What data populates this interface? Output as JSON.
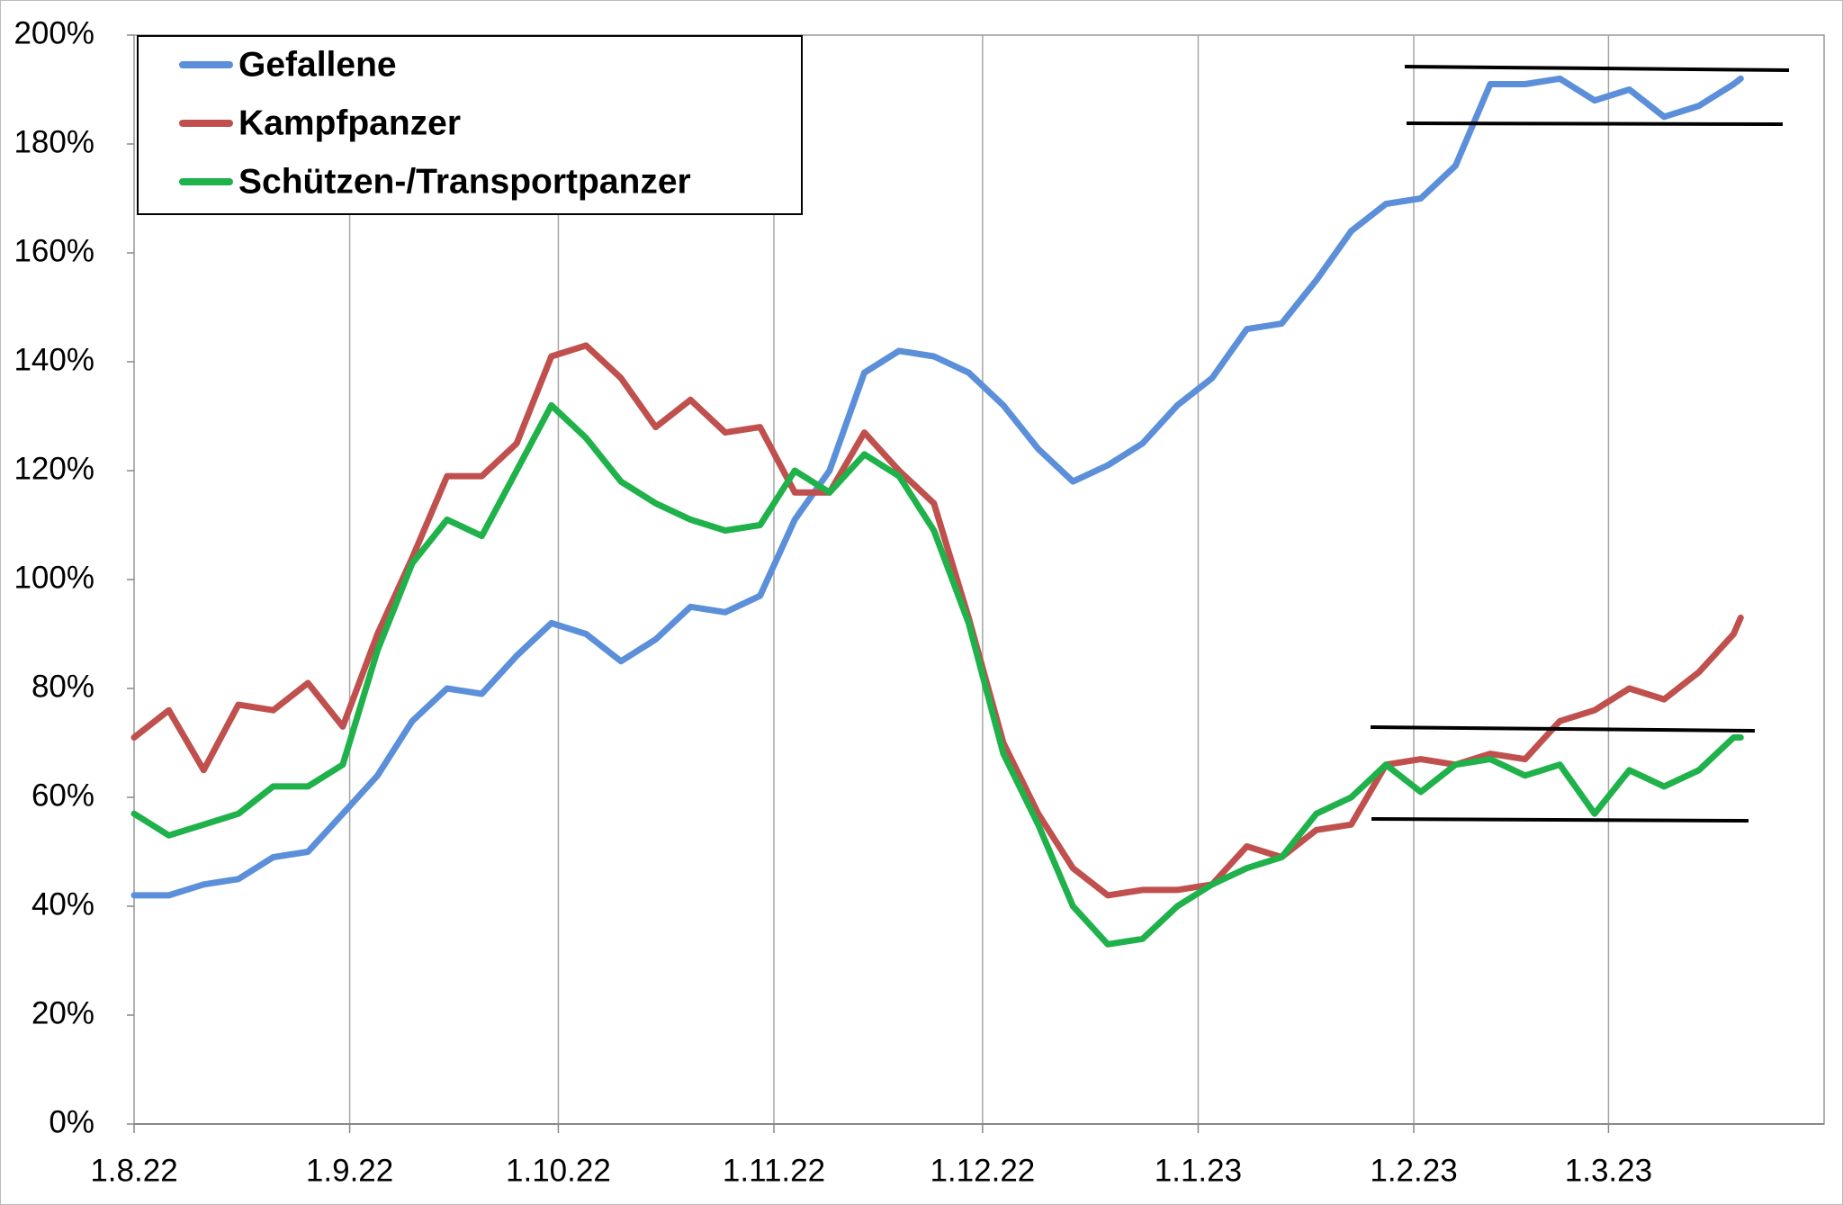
{
  "chart_data": {
    "type": "line",
    "x": [
      "2022-08-01",
      "2022-08-06",
      "2022-08-11",
      "2022-08-16",
      "2022-08-21",
      "2022-08-26",
      "2022-08-31",
      "2022-09-05",
      "2022-09-10",
      "2022-09-15",
      "2022-09-20",
      "2022-09-25",
      "2022-09-30",
      "2022-10-05",
      "2022-10-10",
      "2022-10-15",
      "2022-10-20",
      "2022-10-25",
      "2022-10-30",
      "2022-11-04",
      "2022-11-09",
      "2022-11-14",
      "2022-11-19",
      "2022-11-24",
      "2022-11-29",
      "2022-12-04",
      "2022-12-09",
      "2022-12-14",
      "2022-12-19",
      "2022-12-24",
      "2022-12-29",
      "2023-01-03",
      "2023-01-08",
      "2023-01-13",
      "2023-01-18",
      "2023-01-23",
      "2023-01-28",
      "2023-02-02",
      "2023-02-07",
      "2023-02-12",
      "2023-02-17",
      "2023-02-22",
      "2023-02-27",
      "2023-03-04",
      "2023-03-09",
      "2023-03-14",
      "2023-03-19",
      "2023-03-20"
    ],
    "series": [
      {
        "name": "Gefallene",
        "color": "#5b8fd9",
        "values": [
          42,
          42,
          44,
          45,
          49,
          50,
          57,
          64,
          74,
          80,
          79,
          86,
          92,
          90,
          85,
          89,
          95,
          94,
          97,
          111,
          120,
          138,
          142,
          141,
          138,
          132,
          124,
          118,
          121,
          125,
          132,
          137,
          146,
          147,
          155,
          164,
          169,
          170,
          176,
          191,
          191,
          192,
          188,
          190,
          185,
          187,
          191,
          192
        ]
      },
      {
        "name": "Kampfpanzer",
        "color": "#c0504d",
        "values": [
          71,
          76,
          65,
          77,
          76,
          81,
          73,
          90,
          104,
          119,
          119,
          125,
          141,
          143,
          137,
          128,
          133,
          127,
          128,
          116,
          116,
          127,
          120,
          114,
          93,
          70,
          57,
          47,
          42,
          43,
          43,
          44,
          51,
          49,
          54,
          55,
          66,
          67,
          66,
          68,
          67,
          74,
          76,
          80,
          78,
          83,
          90,
          93
        ]
      },
      {
        "name": "Schützen-/Transportpanzer",
        "color": "#1fb14a",
        "values": [
          57,
          53,
          55,
          57,
          62,
          62,
          66,
          87,
          103,
          111,
          108,
          120,
          132,
          126,
          118,
          114,
          111,
          109,
          110,
          120,
          116,
          123,
          119,
          109,
          92,
          68,
          55,
          40,
          33,
          34,
          40,
          44,
          47,
          49,
          57,
          60,
          66,
          61,
          66,
          67,
          64,
          66,
          57,
          65,
          62,
          65,
          71,
          71
        ]
      }
    ],
    "xlim": [
      "2022-08-01",
      "2023-04-01"
    ],
    "xticks": [
      {
        "value": "2022-08-01",
        "label": "1.8.22"
      },
      {
        "value": "2022-09-01",
        "label": "1.9.22"
      },
      {
        "value": "2022-10-01",
        "label": "1.10.22"
      },
      {
        "value": "2022-11-01",
        "label": "1.11.22"
      },
      {
        "value": "2022-12-01",
        "label": "1.12.22"
      },
      {
        "value": "2023-01-01",
        "label": "1.1.23"
      },
      {
        "value": "2023-02-01",
        "label": "1.2.23"
      },
      {
        "value": "2023-03-01",
        "label": "1.3.23"
      }
    ],
    "ylim": [
      0,
      200
    ],
    "yticks": [
      {
        "value": 0,
        "label": "0%"
      },
      {
        "value": 20,
        "label": "20%"
      },
      {
        "value": 40,
        "label": "40%"
      },
      {
        "value": 60,
        "label": "60%"
      },
      {
        "value": 80,
        "label": "80%"
      },
      {
        "value": 100,
        "label": "100%"
      },
      {
        "value": 120,
        "label": "120%"
      },
      {
        "value": 140,
        "label": "140%"
      },
      {
        "value": 160,
        "label": "160%"
      },
      {
        "value": 180,
        "label": "180%"
      },
      {
        "value": 200,
        "label": "200%"
      }
    ],
    "grid": "x",
    "legend": "top-left"
  }
}
